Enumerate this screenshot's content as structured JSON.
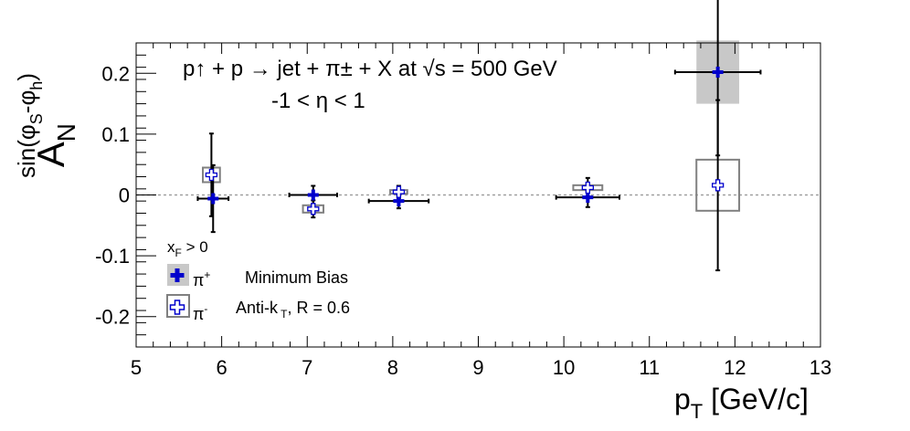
{
  "chart_data": {
    "type": "scatter",
    "title_line1": "p↑ + p → jet + π± + X at √s = 500 GeV",
    "title_line2": "-1 < η < 1",
    "xlabel": "p_T [GeV/c]",
    "ylabel": "A_N^{sin(φ_S - φ_h)}",
    "xlim": [
      5,
      13
    ],
    "ylim": [
      -0.25,
      0.25
    ],
    "x_ticks": [
      5,
      6,
      7,
      8,
      9,
      10,
      11,
      12,
      13
    ],
    "y_ticks": [
      -0.2,
      -0.1,
      0,
      0.1,
      0.2
    ],
    "x_tick_labels": [
      "5",
      "6",
      "7",
      "8",
      "9",
      "10",
      "11",
      "12",
      "13"
    ],
    "y_tick_labels": [
      "-0.2",
      "-0.1",
      "0",
      "0.1",
      "0.2"
    ],
    "zero_line": true,
    "legend": {
      "header": "x_F > 0",
      "entry1_label": "π+",
      "entry1_note": "Minimum Bias",
      "entry2_label": "π-",
      "entry2_note": "Anti-k_T, R = 0.6"
    },
    "series": [
      {
        "name": "π+",
        "color": "#0000cc",
        "marker": "filled-cross",
        "points": [
          {
            "x": 5.9,
            "y": -0.006,
            "xerr": 0.18,
            "yerr": 0.055,
            "sys_x": 0.0,
            "sys_y": 0.0
          },
          {
            "x": 7.07,
            "y": 0.0,
            "xerr": 0.28,
            "yerr": 0.015,
            "sys_x": 0.0,
            "sys_y": 0.0
          },
          {
            "x": 8.07,
            "y": -0.01,
            "xerr": 0.35,
            "yerr": 0.012,
            "sys_x": 0.0,
            "sys_y": 0.0
          },
          {
            "x": 10.28,
            "y": -0.004,
            "xerr": 0.37,
            "yerr": 0.016,
            "sys_x": 0.0,
            "sys_y": 0.0
          },
          {
            "x": 11.8,
            "y": 0.202,
            "xerr": 0.5,
            "yerr": 0.137,
            "sys_x": 0.25,
            "sys_y": 0.052
          }
        ]
      },
      {
        "name": "π-",
        "color": "#000000",
        "marker": "open-cross",
        "points": [
          {
            "x": 5.88,
            "y": 0.033,
            "xerr": 0.0,
            "yerr": 0.068,
            "sys_x": 0.1,
            "sys_y": 0.012
          },
          {
            "x": 7.07,
            "y": -0.023,
            "xerr": 0.0,
            "yerr": 0.014,
            "sys_x": 0.12,
            "sys_y": 0.006
          },
          {
            "x": 8.07,
            "y": 0.005,
            "xerr": 0.0,
            "yerr": 0.01,
            "sys_x": 0.1,
            "sys_y": 0.003
          },
          {
            "x": 10.28,
            "y": 0.012,
            "xerr": 0.0,
            "yerr": 0.016,
            "sys_x": 0.17,
            "sys_y": 0.004
          },
          {
            "x": 11.8,
            "y": 0.016,
            "xerr": 0.0,
            "yerr": 0.14,
            "sys_x": 0.25,
            "sys_y": 0.042
          }
        ]
      }
    ]
  }
}
